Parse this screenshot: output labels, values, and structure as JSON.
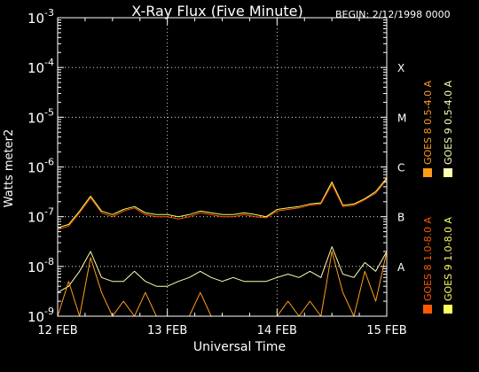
{
  "chart_data": {
    "type": "line",
    "title": "X-Ray Flux (Five Minute)",
    "subtitle": "BEGIN: 2/12/1998 0000",
    "xlabel": "Universal Time",
    "ylabel": "Watts meter2",
    "yscale": "log",
    "ylim": [
      1e-09,
      0.001
    ],
    "xlim": [
      0,
      3
    ],
    "x_ticks": [
      {
        "value": 0,
        "label": "12 FEB"
      },
      {
        "value": 1,
        "label": "13 FEB"
      },
      {
        "value": 2,
        "label": "14 FEB"
      },
      {
        "value": 3,
        "label": "15 FEB"
      }
    ],
    "y_ticks": [
      {
        "exp": -9,
        "base": "10",
        "sup": "-9"
      },
      {
        "exp": -8,
        "base": "10",
        "sup": "-8"
      },
      {
        "exp": -7,
        "base": "10",
        "sup": "-7"
      },
      {
        "exp": -6,
        "base": "10",
        "sup": "-6"
      },
      {
        "exp": -5,
        "base": "10",
        "sup": "-5"
      },
      {
        "exp": -4,
        "base": "10",
        "sup": "-4"
      },
      {
        "exp": -3,
        "base": "10",
        "sup": "-3"
      }
    ],
    "flare_classes": [
      {
        "label": "A",
        "exp": -8
      },
      {
        "label": "B",
        "exp": -7
      },
      {
        "label": "C",
        "exp": -6
      },
      {
        "label": "M",
        "exp": -5
      },
      {
        "label": "X",
        "exp": -4
      }
    ],
    "grid": {
      "horizontal_dotted": true,
      "vertical_dotted": true
    },
    "legend_position": "right-vertical",
    "series": [
      {
        "name": "GOES 8 1.0-8.0 A",
        "color": "#ff5a00",
        "x": [
          0,
          0.1,
          0.2,
          0.3,
          0.4,
          0.5,
          0.6,
          0.7,
          0.8,
          0.9,
          1.0,
          1.1,
          1.2,
          1.3,
          1.4,
          1.5,
          1.6,
          1.7,
          1.8,
          1.9,
          2.0,
          2.1,
          2.2,
          2.3,
          2.4,
          2.5,
          2.6,
          2.7,
          2.8,
          2.9,
          3.0
        ],
        "y": [
          5.5e-08,
          6.5e-08,
          1.2e-07,
          2.4e-07,
          1.2e-07,
          1e-07,
          1.3e-07,
          1.5e-07,
          1.1e-07,
          1e-07,
          1e-07,
          9e-08,
          1e-07,
          1.2e-07,
          1.1e-07,
          1e-07,
          1e-07,
          1.1e-07,
          1e-07,
          9.5e-08,
          1.3e-07,
          1.4e-07,
          1.5e-07,
          1.7e-07,
          1.8e-07,
          4.5e-07,
          1.6e-07,
          1.7e-07,
          2.2e-07,
          3e-07,
          5.5e-07
        ]
      },
      {
        "name": "GOES 8 0.5-4.0 A",
        "color": "#ff9c1a",
        "x": [
          0,
          0.1,
          0.2,
          0.3,
          0.4,
          0.5,
          0.6,
          0.7,
          0.8,
          0.9,
          1.0,
          1.1,
          1.2,
          1.3,
          1.4,
          1.5,
          1.6,
          1.7,
          1.8,
          1.9,
          2.0,
          2.1,
          2.2,
          2.3,
          2.4,
          2.5,
          2.6,
          2.7,
          2.8,
          2.9,
          3.0
        ],
        "y": [
          1e-09,
          5e-09,
          1e-09,
          1.5e-08,
          3e-09,
          1e-09,
          2e-09,
          1e-09,
          3e-09,
          1e-09,
          1e-09,
          1e-09,
          1e-09,
          3e-09,
          1e-09,
          1e-09,
          1e-09,
          1e-09,
          1e-09,
          1e-09,
          1e-09,
          2e-09,
          1e-09,
          2e-09,
          1e-09,
          2e-08,
          3e-09,
          1e-09,
          8e-09,
          2e-09,
          2e-08
        ]
      },
      {
        "name": "GOES 9 1.0-8.0 A",
        "color": "#ffff60",
        "x": [
          0,
          0.1,
          0.2,
          0.3,
          0.4,
          0.5,
          0.6,
          0.7,
          0.8,
          0.9,
          1.0,
          1.1,
          1.2,
          1.3,
          1.4,
          1.5,
          1.6,
          1.7,
          1.8,
          1.9,
          2.0,
          2.1,
          2.2,
          2.3,
          2.4,
          2.5,
          2.6,
          2.7,
          2.8,
          2.9,
          3.0
        ],
        "y": [
          6e-08,
          7e-08,
          1.3e-07,
          2.6e-07,
          1.3e-07,
          1.1e-07,
          1.4e-07,
          1.6e-07,
          1.2e-07,
          1.1e-07,
          1.1e-07,
          1e-07,
          1.1e-07,
          1.3e-07,
          1.2e-07,
          1.1e-07,
          1.1e-07,
          1.2e-07,
          1.1e-07,
          1e-07,
          1.4e-07,
          1.5e-07,
          1.6e-07,
          1.8e-07,
          1.9e-07,
          5e-07,
          1.7e-07,
          1.8e-07,
          2.3e-07,
          3.2e-07,
          6e-07
        ]
      },
      {
        "name": "GOES 9 0.5-4.0 A",
        "color": "#ffffb0",
        "x": [
          0,
          0.1,
          0.2,
          0.3,
          0.4,
          0.5,
          0.6,
          0.7,
          0.8,
          0.9,
          1.0,
          1.1,
          1.2,
          1.3,
          1.4,
          1.5,
          1.6,
          1.7,
          1.8,
          1.9,
          2.0,
          2.1,
          2.2,
          2.3,
          2.4,
          2.5,
          2.6,
          2.7,
          2.8,
          2.9,
          3.0
        ],
        "y": [
          3e-09,
          4e-09,
          8e-09,
          2e-08,
          6e-09,
          5e-09,
          5e-09,
          8e-09,
          5e-09,
          4e-09,
          4e-09,
          5e-09,
          6e-09,
          8e-09,
          6e-09,
          5e-09,
          6e-09,
          5e-09,
          5e-09,
          5e-09,
          6e-09,
          7e-09,
          6e-09,
          8e-09,
          6e-09,
          2.5e-08,
          7e-09,
          6e-09,
          1.2e-08,
          8e-09,
          2e-08
        ]
      }
    ]
  }
}
